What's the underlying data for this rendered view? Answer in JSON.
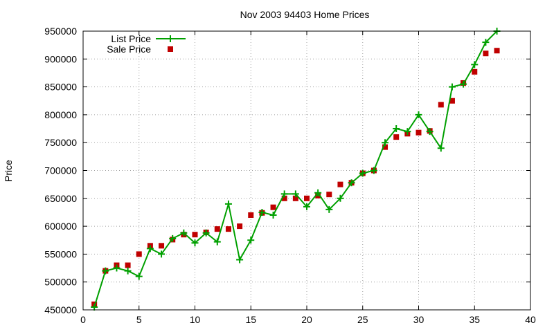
{
  "chart_data": {
    "type": "line",
    "title": "Nov 2003 94403 Home Prices",
    "xlabel": "",
    "ylabel": "Price",
    "xlim": [
      0,
      40
    ],
    "ylim": [
      450000,
      950000
    ],
    "x_ticks": [
      0,
      5,
      10,
      15,
      20,
      25,
      30,
      35,
      40
    ],
    "y_ticks": [
      450000,
      500000,
      550000,
      600000,
      650000,
      700000,
      750000,
      800000,
      850000,
      900000,
      950000
    ],
    "grid": true,
    "legend_position": "top-left",
    "series": [
      {
        "name": "List Price",
        "style": "line-with-plus-markers",
        "color": "#00a000",
        "x": [
          1,
          2,
          3,
          4,
          5,
          6,
          7,
          8,
          9,
          10,
          11,
          12,
          13,
          14,
          15,
          16,
          17,
          18,
          19,
          20,
          21,
          22,
          23,
          24,
          25,
          26,
          27,
          28,
          29,
          30,
          31,
          32,
          33,
          34,
          35,
          36,
          37
        ],
        "values": [
          455000,
          520000,
          525000,
          520000,
          510000,
          560000,
          550000,
          578000,
          588000,
          570000,
          588000,
          572000,
          640000,
          540000,
          575000,
          625000,
          620000,
          658000,
          658000,
          635000,
          660000,
          630000,
          650000,
          678000,
          695000,
          700000,
          750000,
          775000,
          770000,
          800000,
          770000,
          740000,
          850000,
          855000,
          890000,
          930000,
          950000
        ]
      },
      {
        "name": "Sale Price",
        "style": "square-markers",
        "color": "#c00000",
        "x": [
          1,
          2,
          3,
          4,
          5,
          6,
          7,
          8,
          9,
          10,
          11,
          12,
          13,
          14,
          15,
          16,
          17,
          18,
          19,
          20,
          21,
          22,
          23,
          24,
          25,
          26,
          27,
          28,
          29,
          30,
          31,
          32,
          33,
          34,
          35,
          36,
          37
        ],
        "values": [
          460000,
          520000,
          530000,
          530000,
          550000,
          565000,
          565000,
          576000,
          585000,
          585000,
          589000,
          595000,
          595000,
          600000,
          620000,
          624000,
          634000,
          650000,
          650000,
          650000,
          655000,
          657000,
          675000,
          678000,
          695000,
          700000,
          742000,
          760000,
          766000,
          768000,
          771000,
          818000,
          825000,
          857000,
          877000,
          910000,
          915000
        ]
      }
    ]
  }
}
